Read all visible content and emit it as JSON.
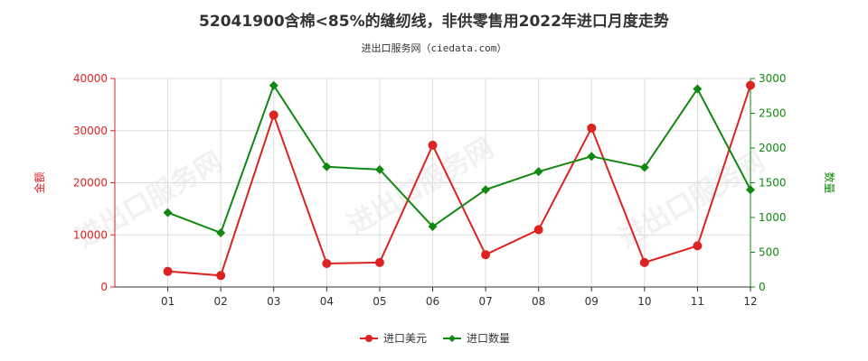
{
  "title": "52041900含棉<85%的缝纫线，非供零售用2022年进口月度走势",
  "subtitle": "进出口服务网（ciedata.com）",
  "watermark": "进出口服务网",
  "colors": {
    "series_usd": "#dd2222",
    "series_qty": "#118811"
  },
  "chart_data": {
    "type": "line",
    "categories": [
      "01",
      "02",
      "03",
      "04",
      "05",
      "06",
      "07",
      "08",
      "09",
      "10",
      "11",
      "12"
    ],
    "series": [
      {
        "name": "进口美元",
        "axis": "left",
        "values": [
          3000,
          2200,
          33000,
          4500,
          4700,
          27200,
          6200,
          11000,
          30500,
          4700,
          7900,
          38700
        ]
      },
      {
        "name": "进口数量",
        "axis": "right",
        "values": [
          1070,
          780,
          2900,
          1730,
          1690,
          870,
          1400,
          1660,
          1880,
          1720,
          2850,
          1400
        ]
      }
    ],
    "y_left": {
      "label": "金额",
      "ylim": [
        0,
        40000
      ],
      "ticks": [
        "0",
        "10000",
        "20000",
        "30000",
        "40000"
      ]
    },
    "y_right": {
      "label": "数量",
      "ylim": [
        0,
        3000
      ],
      "ticks": [
        "0",
        "500",
        "1000",
        "1500",
        "2000",
        "2500",
        "3000"
      ]
    },
    "grid": true,
    "legend": "bottom-center"
  }
}
